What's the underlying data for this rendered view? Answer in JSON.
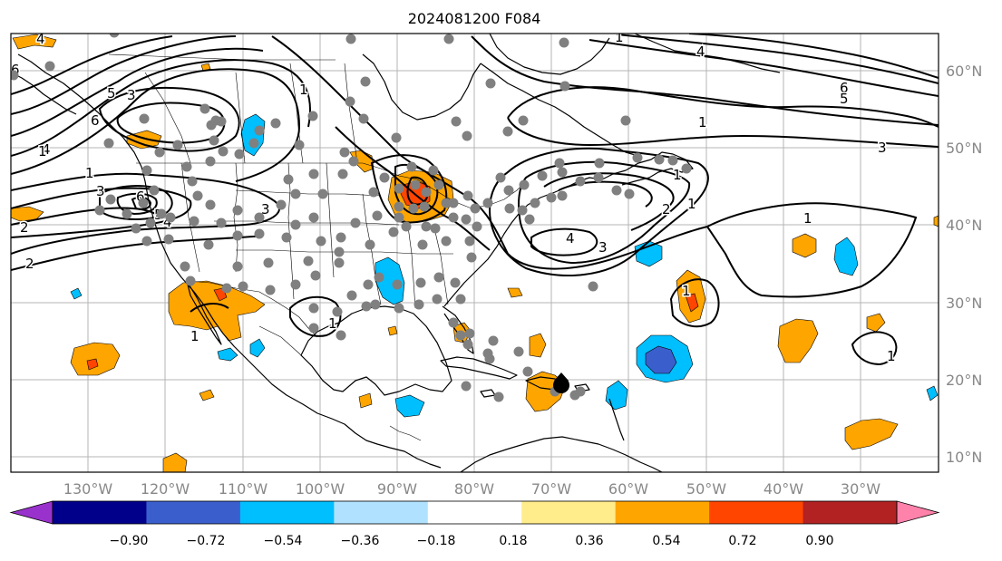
{
  "title": "2024081200 F084",
  "lon_labels": [
    "130°W",
    "120°W",
    "110°W",
    "100°W",
    "90°W",
    "80°W",
    "70°W",
    "60°W",
    "50°W",
    "40°W",
    "30°W"
  ],
  "lat_labels": [
    "60°N",
    "50°N",
    "40°N",
    "30°N",
    "20°N",
    "10°N"
  ],
  "colorbar": {
    "ticks": [
      "−0.90",
      "−0.72",
      "−0.54",
      "−0.36",
      "−0.18",
      "0.18",
      "0.36",
      "0.54",
      "0.72",
      "0.90"
    ],
    "colors": [
      "#9932cc",
      "#00008b",
      "#3a5fcd",
      "#00bfff",
      "#b0e2ff",
      "#ffffff",
      "#ffec8b",
      "#ffa500",
      "#ff4500",
      "#b22222",
      "#ff82ab"
    ]
  },
  "contour_labels": [
    "4",
    "5",
    "3",
    "4",
    "6",
    "1",
    "1",
    "2",
    "3",
    "3",
    "5",
    "6",
    "2",
    "4",
    "6",
    "1",
    "2",
    "1",
    "3",
    "4",
    "6",
    "5",
    "1",
    "1",
    "3",
    "1",
    "4",
    "1",
    "1",
    "1",
    "1",
    "1"
  ],
  "map_colors": {
    "grid": "#b4b4b4",
    "coast": "#000000",
    "station": "#808080",
    "positive": "#ffa500",
    "strong_positive": "#ff4500",
    "negative": "#00bfff",
    "strong_negative": "#3a5fcd"
  }
}
